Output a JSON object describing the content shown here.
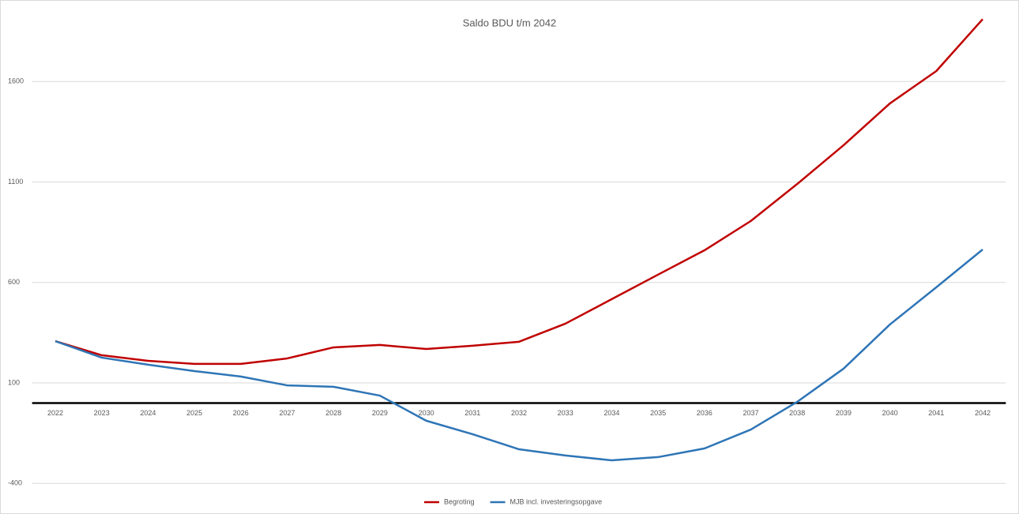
{
  "chart_data": {
    "type": "line",
    "title": "Saldo BDU t/m 2042",
    "categories": [
      "2022",
      "2023",
      "2024",
      "2025",
      "2026",
      "2027",
      "2028",
      "2029",
      "2030",
      "2031",
      "2032",
      "2033",
      "2034",
      "2035",
      "2036",
      "2037",
      "2038",
      "2039",
      "2040",
      "2041",
      "2042"
    ],
    "series": [
      {
        "name": "Begroting",
        "color": "#c00000",
        "values": [
          308,
          238,
          210,
          195,
          195,
          222,
          277,
          289,
          269,
          285,
          305,
          395,
          517,
          639,
          760,
          906,
          1090,
          1283,
          1491,
          1652,
          1910
        ]
      },
      {
        "name": "MJB incl. investeringsopgave",
        "color": "#2e75b6",
        "values": [
          308,
          226,
          191,
          159,
          132,
          88,
          81,
          37,
          -88,
          -155,
          -230,
          -261,
          -285,
          -269,
          -226,
          -132,
          6,
          171,
          391,
          576,
          764
        ]
      }
    ],
    "ylim": [
      -450,
      1817
    ],
    "yticks": [
      -400,
      100,
      600,
      1100,
      1600
    ],
    "grid": true,
    "legend": "bottom"
  }
}
